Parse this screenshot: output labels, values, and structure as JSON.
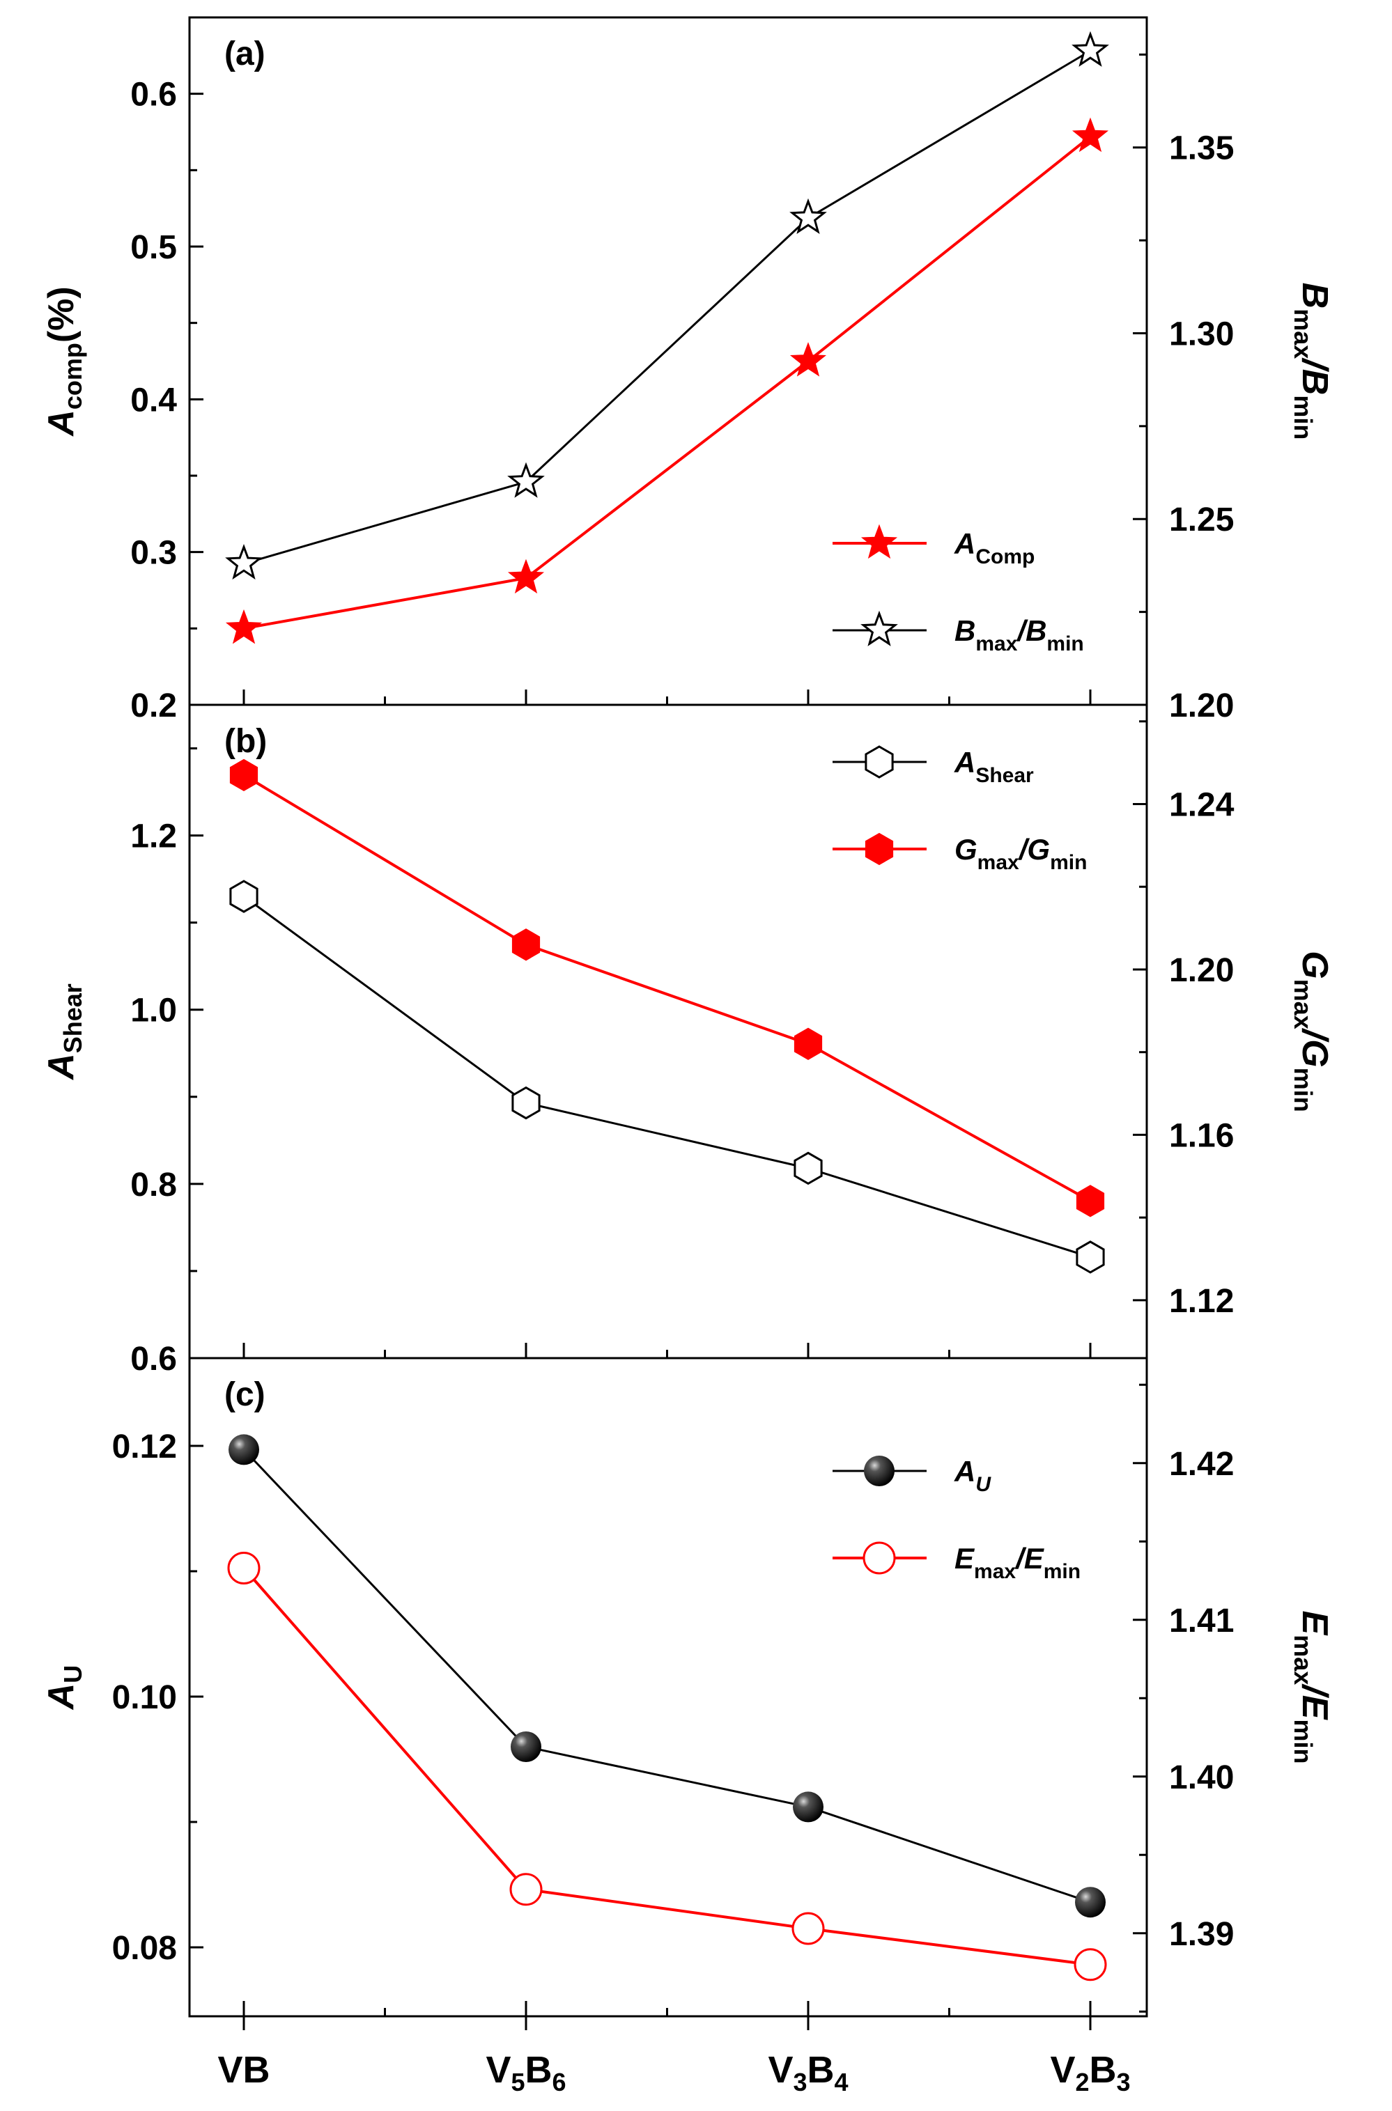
{
  "figure": {
    "categories": [
      {
        "main": "V",
        "sub": "",
        "main2": "B",
        "sub2": ""
      },
      {
        "main": "V",
        "sub": "5",
        "main2": "B",
        "sub2": "6"
      },
      {
        "main": "V",
        "sub": "3",
        "main2": "B",
        "sub2": "4"
      },
      {
        "main": "V",
        "sub": "2",
        "main2": "B",
        "sub2": "3"
      }
    ],
    "colors": {
      "red": "#ff0000",
      "black": "#000000"
    }
  },
  "chart_data": [
    {
      "type": "line",
      "panel_label": "(a)",
      "categories": [
        "VB",
        "V5B6",
        "V3B4",
        "V2B3"
      ],
      "left_axis": {
        "label_main": "A",
        "label_sub": "comp",
        "label_suffix": "(%)",
        "ylim": [
          0.2,
          0.65
        ],
        "major_ticks": [
          0.2,
          0.3,
          0.4,
          0.5,
          0.6
        ],
        "tick_labels": [
          "0.2",
          "0.3",
          "0.4",
          "0.5",
          "0.6"
        ]
      },
      "right_axis": {
        "label_a": "B",
        "label_a_sub": "max",
        "label_b": "B",
        "label_b_sub": "min",
        "ylim": [
          1.2,
          1.385
        ],
        "major_ticks": [
          1.2,
          1.25,
          1.3,
          1.35
        ],
        "tick_labels": [
          "1.20",
          "1.25",
          "1.30",
          "1.35"
        ]
      },
      "series": [
        {
          "name_main": "A",
          "name_sub": "Comp",
          "axis": "left",
          "color": "#ff0000",
          "marker": "filled-star",
          "values": [
            0.25,
            0.283,
            0.425,
            0.572
          ]
        },
        {
          "name_main": "B",
          "name_sub": "max",
          "name_sep": "/",
          "name_main2": "B",
          "name_sub2": "min",
          "axis": "right",
          "color": "#000000",
          "marker": "open-star",
          "values": [
            1.238,
            1.26,
            1.331,
            1.376
          ]
        }
      ]
    },
    {
      "type": "line",
      "panel_label": "(b)",
      "categories": [
        "VB",
        "V5B6",
        "V3B4",
        "V2B3"
      ],
      "left_axis": {
        "label_main": "A",
        "label_sub": "Shear",
        "ylim": [
          0.6,
          1.35
        ],
        "major_ticks": [
          0.6,
          0.8,
          1.0,
          1.2
        ],
        "tick_labels": [
          "0.6",
          "0.8",
          "1.0",
          "1.2"
        ]
      },
      "right_axis": {
        "label_a": "G",
        "label_a_sub": "max",
        "label_b": "G",
        "label_b_sub": "min",
        "ylim": [
          1.106,
          1.264
        ],
        "major_ticks": [
          1.12,
          1.16,
          1.2,
          1.24
        ],
        "tick_labels": [
          "1.12",
          "1.16",
          "1.20",
          "1.24"
        ]
      },
      "series": [
        {
          "name_main": "A",
          "name_sub": "Shear",
          "axis": "left",
          "color": "#000000",
          "marker": "open-hexagon",
          "values": [
            1.13,
            0.893,
            0.818,
            0.716
          ]
        },
        {
          "name_main": "G",
          "name_sub": "max",
          "name_sep": "/",
          "name_main2": "G",
          "name_sub2": "min",
          "axis": "right",
          "color": "#ff0000",
          "marker": "filled-hexagon",
          "values": [
            1.247,
            1.206,
            1.182,
            1.144
          ]
        }
      ]
    },
    {
      "type": "line",
      "panel_label": "(c)",
      "categories": [
        "VB",
        "V5B6",
        "V3B4",
        "V2B3"
      ],
      "left_axis": {
        "label_main": "A",
        "label_sub": "U",
        "ylim": [
          0.0745,
          0.127
        ],
        "major_ticks": [
          0.08,
          0.1,
          0.12
        ],
        "tick_labels": [
          "0.08",
          "0.10",
          "0.12"
        ]
      },
      "right_axis": {
        "label_a": "E",
        "label_a_sub": "max",
        "label_b": "E",
        "label_b_sub": "min",
        "ylim": [
          1.3847,
          1.4267
        ],
        "major_ticks": [
          1.39,
          1.4,
          1.41,
          1.42
        ],
        "tick_labels": [
          "1.39",
          "1.40",
          "1.41",
          "1.42"
        ]
      },
      "series": [
        {
          "name_main": "A",
          "name_sub": "U",
          "axis": "left",
          "color": "#000000",
          "marker": "filled-sphere",
          "values": [
            0.1197,
            0.096,
            0.0912,
            0.0836
          ]
        },
        {
          "name_main": "E",
          "name_sub": "max",
          "name_sep": "/",
          "name_main2": "E",
          "name_sub2": "min",
          "axis": "right",
          "color": "#ff0000",
          "marker": "open-circle",
          "values": [
            1.4133,
            1.3928,
            1.3903,
            1.388
          ]
        }
      ]
    }
  ]
}
